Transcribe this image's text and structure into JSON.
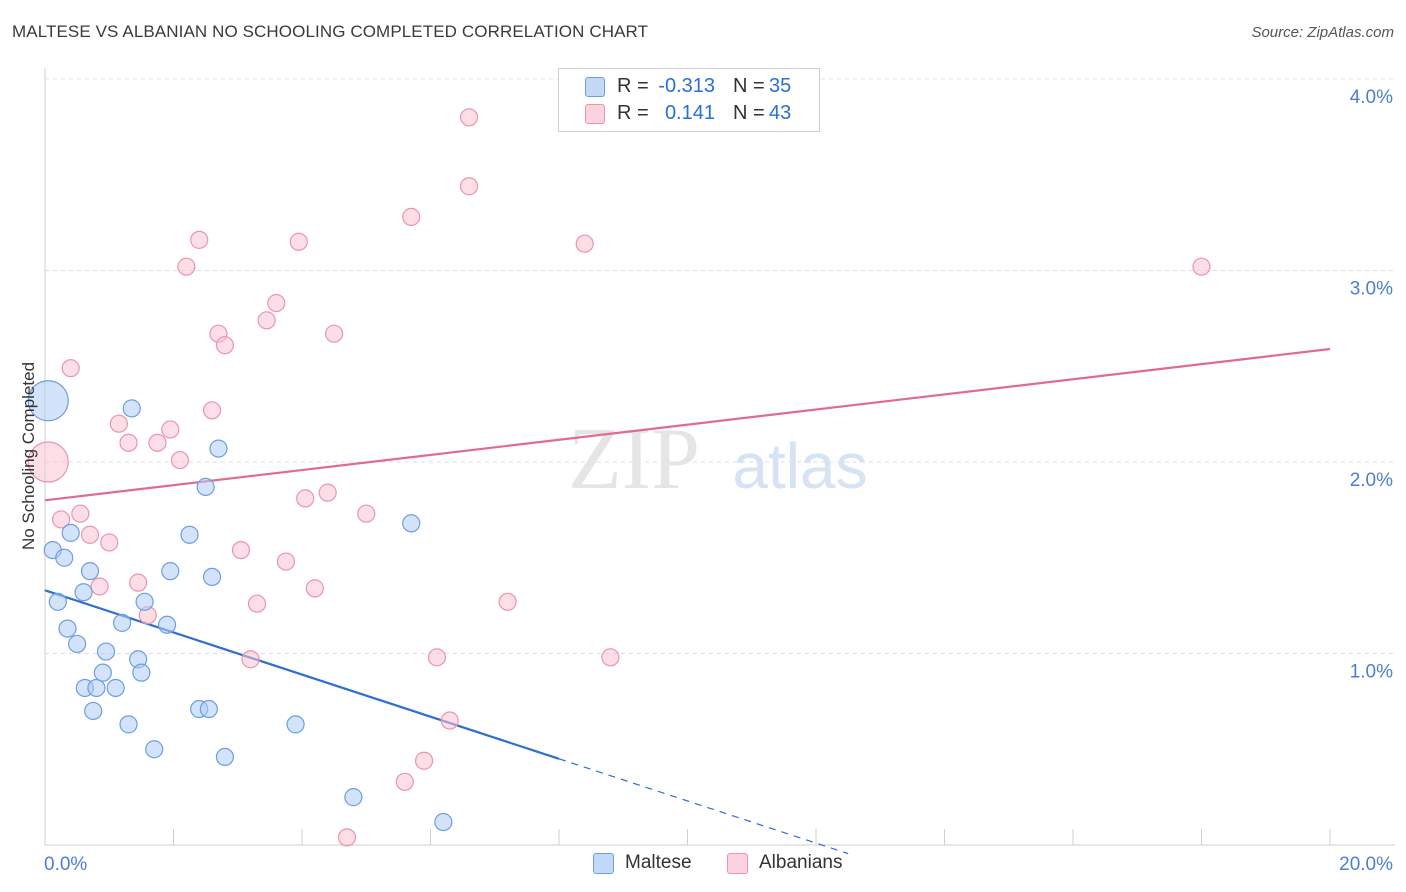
{
  "title": "MALTESE VS ALBANIAN NO SCHOOLING COMPLETED CORRELATION CHART",
  "source": "Source: ZipAtlas.com",
  "watermark": {
    "zip": "ZIP",
    "atlas": "atlas"
  },
  "legend": {
    "rows": [
      {
        "r_label": "R =",
        "r_value": "-0.313",
        "n_label": "N =",
        "n_value": "35"
      },
      {
        "r_label": "R =",
        "r_value": "0.141",
        "n_label": "N =",
        "n_value": "43"
      }
    ]
  },
  "bottom_legend": [
    "Maltese",
    "Albanians"
  ],
  "colors": {
    "maltese_fill": "#aeccf4",
    "maltese_stroke": "#6e9ee0",
    "maltese_line": "#2f6fd0",
    "albanian_fill": "#f8c3d2",
    "albanian_stroke": "#eb94ae",
    "albanian_line": "#e06a90"
  },
  "chart_data": {
    "type": "scatter",
    "title": "MALTESE VS ALBANIAN NO SCHOOLING COMPLETED CORRELATION CHART",
    "xlabel": "",
    "ylabel": "No Schooling Completed",
    "xlim": [
      0,
      20
    ],
    "ylim": [
      0,
      4.2
    ],
    "x_tick_labels": [
      "0.0%",
      "20.0%"
    ],
    "y_ticks": [
      1,
      2,
      3,
      4
    ],
    "y_tick_labels": [
      "1.0%",
      "2.0%",
      "3.0%",
      "4.0%"
    ],
    "series": [
      {
        "name": "Maltese",
        "r": -0.313,
        "n": 35,
        "trend": {
          "x0": 0,
          "y0": 1.33,
          "x1": 8.0,
          "y1": 0.45,
          "dash_to_x": 12.5
        },
        "points": [
          {
            "x": 0.05,
            "y": 2.32,
            "big": true
          },
          {
            "x": 0.12,
            "y": 1.54
          },
          {
            "x": 0.2,
            "y": 1.27
          },
          {
            "x": 0.3,
            "y": 1.5
          },
          {
            "x": 0.35,
            "y": 1.13
          },
          {
            "x": 0.4,
            "y": 1.63
          },
          {
            "x": 0.5,
            "y": 1.05
          },
          {
            "x": 0.6,
            "y": 1.32
          },
          {
            "x": 0.62,
            "y": 0.82
          },
          {
            "x": 0.7,
            "y": 1.43
          },
          {
            "x": 0.75,
            "y": 0.7
          },
          {
            "x": 0.8,
            "y": 0.82
          },
          {
            "x": 0.9,
            "y": 0.9
          },
          {
            "x": 0.95,
            "y": 1.01
          },
          {
            "x": 1.1,
            "y": 0.82
          },
          {
            "x": 1.2,
            "y": 1.16
          },
          {
            "x": 1.3,
            "y": 0.63
          },
          {
            "x": 1.35,
            "y": 2.28
          },
          {
            "x": 1.45,
            "y": 0.97
          },
          {
            "x": 1.5,
            "y": 0.9
          },
          {
            "x": 1.55,
            "y": 1.27
          },
          {
            "x": 1.7,
            "y": 0.5
          },
          {
            "x": 1.9,
            "y": 1.15
          },
          {
            "x": 1.95,
            "y": 1.43
          },
          {
            "x": 2.25,
            "y": 1.62
          },
          {
            "x": 2.4,
            "y": 0.71
          },
          {
            "x": 2.5,
            "y": 1.87
          },
          {
            "x": 2.55,
            "y": 0.71
          },
          {
            "x": 2.6,
            "y": 1.4
          },
          {
            "x": 2.7,
            "y": 2.07
          },
          {
            "x": 2.8,
            "y": 0.46
          },
          {
            "x": 3.9,
            "y": 0.63
          },
          {
            "x": 4.8,
            "y": 0.25
          },
          {
            "x": 5.7,
            "y": 1.68
          },
          {
            "x": 6.2,
            "y": 0.12
          }
        ]
      },
      {
        "name": "Albanians",
        "r": 0.141,
        "n": 43,
        "trend": {
          "x0": 0,
          "y0": 1.8,
          "x1": 20,
          "y1": 2.59
        },
        "points": [
          {
            "x": 0.05,
            "y": 2.0,
            "big": true
          },
          {
            "x": 0.25,
            "y": 1.7
          },
          {
            "x": 0.4,
            "y": 2.49
          },
          {
            "x": 0.55,
            "y": 1.73
          },
          {
            "x": 0.7,
            "y": 1.62
          },
          {
            "x": 0.85,
            "y": 1.35
          },
          {
            "x": 1.0,
            "y": 1.58
          },
          {
            "x": 1.15,
            "y": 2.2
          },
          {
            "x": 1.3,
            "y": 2.1
          },
          {
            "x": 1.45,
            "y": 1.37
          },
          {
            "x": 1.6,
            "y": 1.2
          },
          {
            "x": 1.75,
            "y": 2.1
          },
          {
            "x": 1.95,
            "y": 2.17
          },
          {
            "x": 2.1,
            "y": 2.01
          },
          {
            "x": 2.2,
            "y": 3.02
          },
          {
            "x": 2.4,
            "y": 3.16
          },
          {
            "x": 2.6,
            "y": 2.27
          },
          {
            "x": 2.7,
            "y": 2.67
          },
          {
            "x": 2.8,
            "y": 2.61
          },
          {
            "x": 3.05,
            "y": 1.54
          },
          {
            "x": 3.2,
            "y": 0.97
          },
          {
            "x": 3.3,
            "y": 1.26
          },
          {
            "x": 3.45,
            "y": 2.74
          },
          {
            "x": 3.6,
            "y": 2.83
          },
          {
            "x": 3.75,
            "y": 1.48
          },
          {
            "x": 3.95,
            "y": 3.15
          },
          {
            "x": 4.05,
            "y": 1.81
          },
          {
            "x": 4.2,
            "y": 1.34
          },
          {
            "x": 4.4,
            "y": 1.84
          },
          {
            "x": 4.5,
            "y": 2.67
          },
          {
            "x": 4.7,
            "y": 0.04
          },
          {
            "x": 5.0,
            "y": 1.73
          },
          {
            "x": 5.6,
            "y": 0.33
          },
          {
            "x": 5.7,
            "y": 3.28
          },
          {
            "x": 5.9,
            "y": 0.44
          },
          {
            "x": 6.1,
            "y": 0.98
          },
          {
            "x": 6.3,
            "y": 0.65
          },
          {
            "x": 6.6,
            "y": 3.8
          },
          {
            "x": 6.6,
            "y": 3.44
          },
          {
            "x": 7.2,
            "y": 1.27
          },
          {
            "x": 8.4,
            "y": 3.14
          },
          {
            "x": 8.8,
            "y": 0.98
          },
          {
            "x": 18.0,
            "y": 3.02
          }
        ]
      }
    ]
  }
}
